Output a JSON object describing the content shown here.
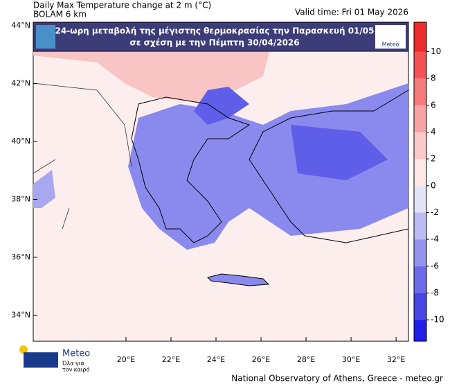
{
  "header": {
    "title": "Daily Max Temperature change at 2 m (°C)",
    "model": "BOLAM 6 km",
    "valid_time": "Valid time: Fri 01 May 2026"
  },
  "banner": {
    "line1": "24-ωρη μεταβολή της μέγιστης θερμοκρασίας την Παρασκευή 01/05",
    "line2": "σε σχέση με την Πέμπτη 30/04/2026",
    "logo": "Meteo"
  },
  "map": {
    "lonlim": [
      15.88,
      32.55
    ],
    "latlim": [
      33.1,
      44.12
    ],
    "xticks": [
      {
        "value": 20,
        "label": "20°E"
      },
      {
        "value": 22,
        "label": "22°E"
      },
      {
        "value": 24,
        "label": "24°E"
      },
      {
        "value": 26,
        "label": "26°E"
      },
      {
        "value": 28,
        "label": "28°E"
      },
      {
        "value": 30,
        "label": "30°E"
      },
      {
        "value": 32,
        "label": "32°E"
      }
    ],
    "yticks": [
      {
        "value": 44,
        "label": "44°N"
      },
      {
        "value": 42,
        "label": "42°N"
      },
      {
        "value": 40,
        "label": "40°N"
      },
      {
        "value": 38,
        "label": "38°N"
      },
      {
        "value": 36,
        "label": "36°N"
      },
      {
        "value": 34,
        "label": "34°N"
      }
    ]
  },
  "colorbar": {
    "lim": [
      -11.6,
      12.2
    ],
    "bounds": [
      -10,
      -8,
      -6,
      -4,
      -2,
      0,
      2,
      4,
      6,
      8,
      10
    ],
    "colors": [
      "#1f1fe8",
      "#4646e6",
      "#6c6cea",
      "#9494ee",
      "#bcbcf4",
      "#e4e4f9",
      "#fde7e7",
      "#fbc9c9",
      "#f8a3a3",
      "#f57b7b",
      "#f25252",
      "#ef2a2a"
    ],
    "ticks": [
      10,
      8,
      6,
      4,
      2,
      0,
      -2,
      -4,
      -6,
      -8,
      -10
    ]
  },
  "footer": {
    "logo": "Meteo",
    "slogan_line1": "Όλα για",
    "slogan_line2": "τον καιρό",
    "credit": "National Observatory of Athens, Greece - meteo.gr"
  }
}
